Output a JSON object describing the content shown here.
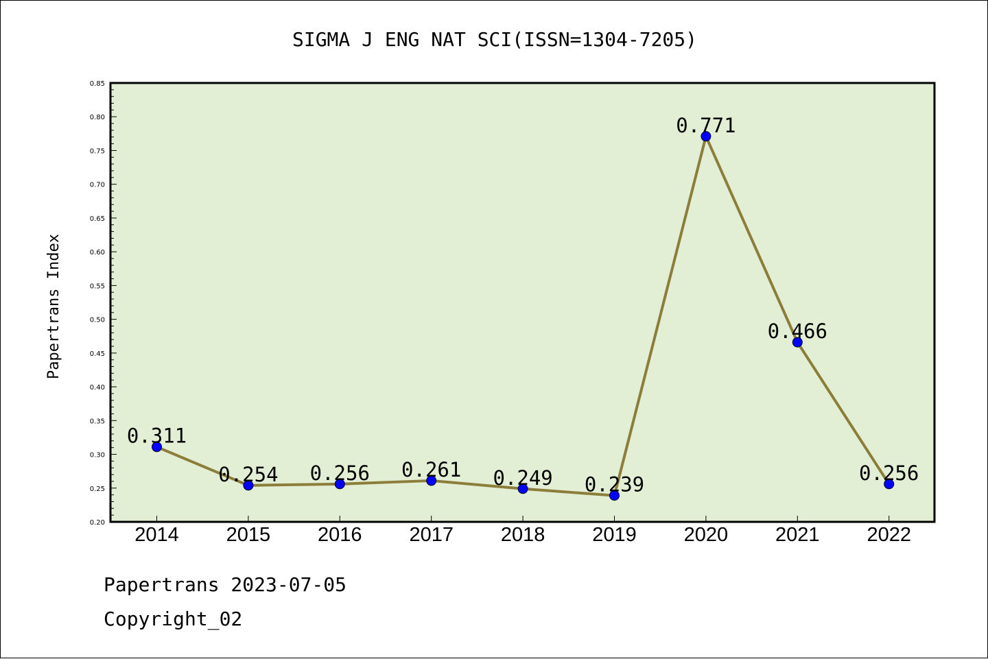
{
  "chart_data": {
    "type": "line",
    "title": "SIGMA J ENG NAT SCI(ISSN=1304-7205)",
    "xlabel": "",
    "ylabel": "Papertrans Index",
    "categories": [
      "2014",
      "2015",
      "2016",
      "2017",
      "2018",
      "2019",
      "2020",
      "2021",
      "2022"
    ],
    "series": [
      {
        "values": [
          0.311,
          0.254,
          0.256,
          0.261,
          0.249,
          0.239,
          0.771,
          0.466,
          0.256
        ],
        "data_labels": [
          "0.311",
          "0.254",
          "0.256",
          "0.261",
          "0.249",
          "0.239",
          "0.771",
          "0.466",
          "0.256"
        ]
      }
    ],
    "ylim": [
      0.2,
      0.85
    ],
    "yticks": [
      "0.20",
      "0.25",
      "0.30",
      "0.35",
      "0.40",
      "0.45",
      "0.50",
      "0.55",
      "0.60",
      "0.65",
      "0.70",
      "0.75",
      "0.80",
      "0.85"
    ],
    "grid": false,
    "legend": "none",
    "colors": {
      "plot_background": "#e2efd5",
      "line": "#8c7d3a",
      "marker": "#0000ff"
    }
  },
  "footer": {
    "line1": "Papertrans 2023-07-05",
    "line2": "Copyright_02"
  }
}
